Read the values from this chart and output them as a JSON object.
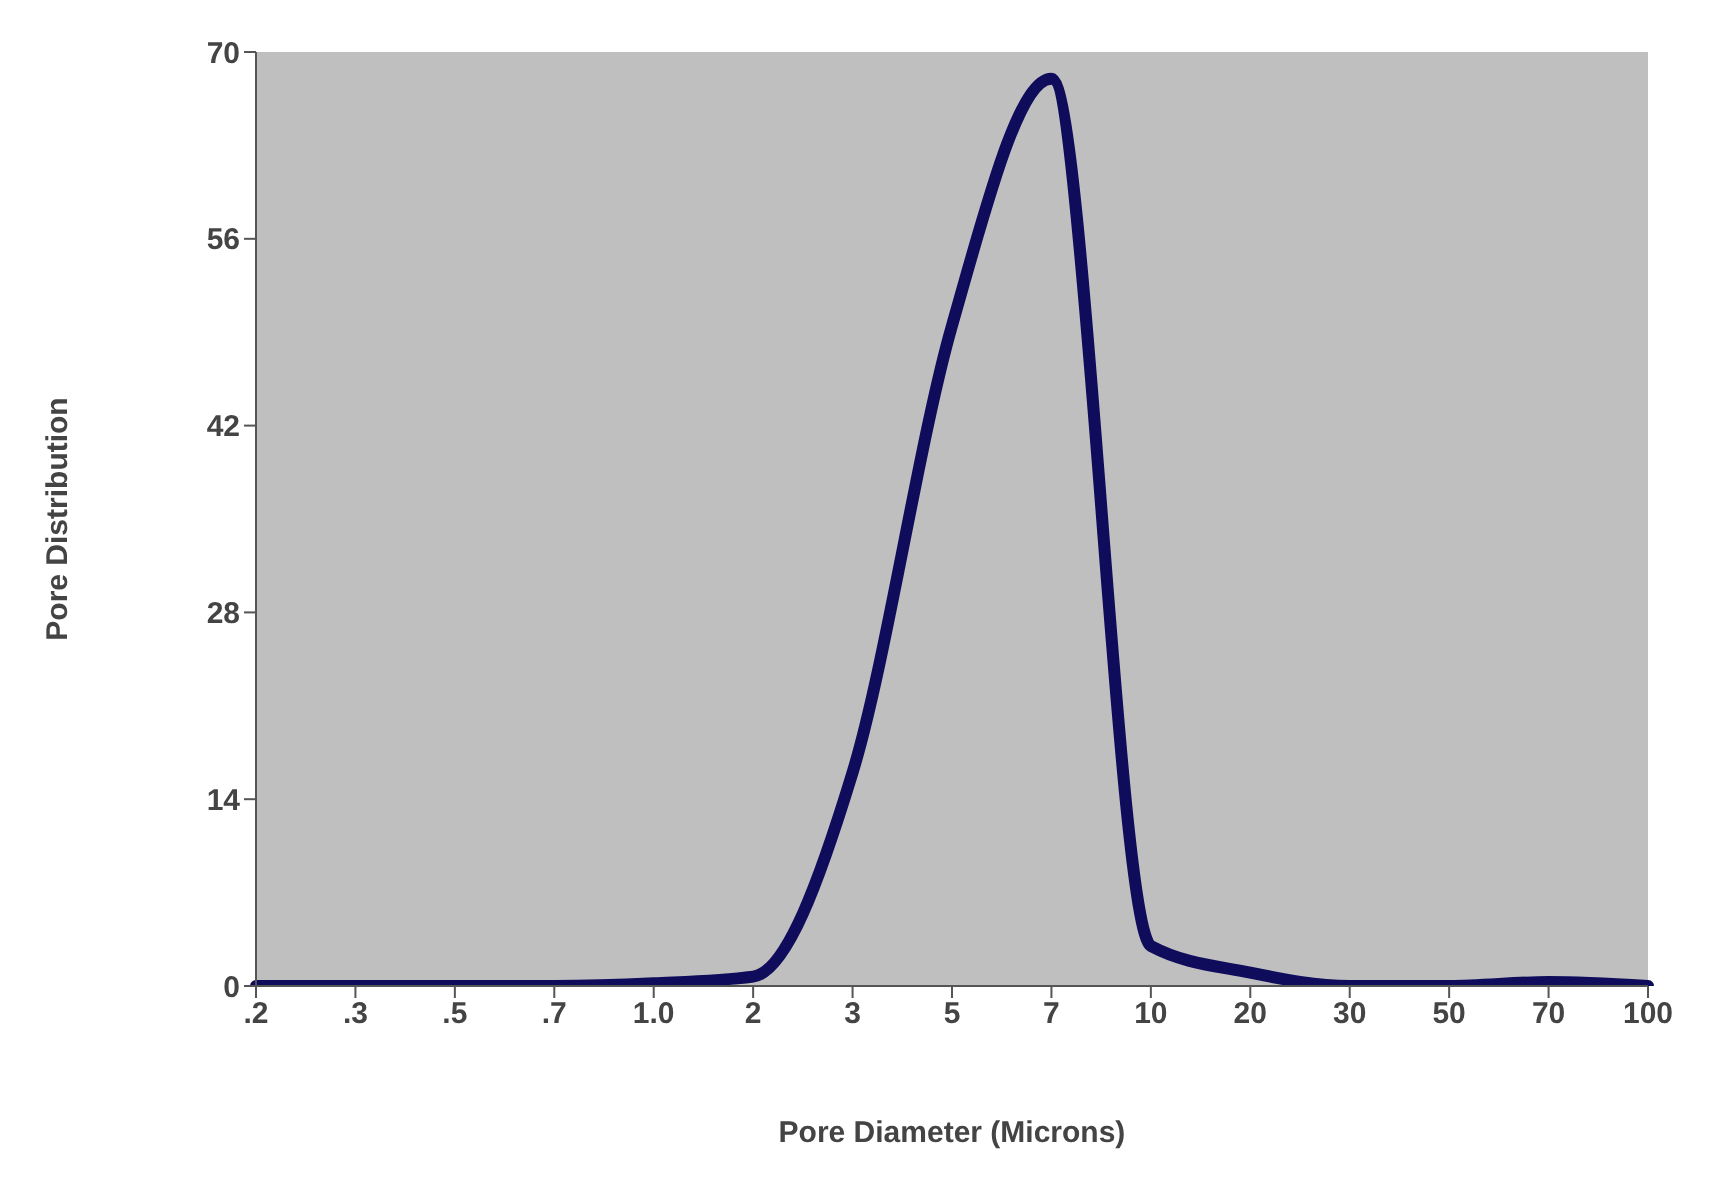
{
  "chart_data": {
    "type": "line",
    "xlabel": "Pore Diameter (Microns)",
    "ylabel": "Pore Distribution",
    "categories": [
      ".2",
      ".3",
      ".5",
      ".7",
      "1.0",
      "2",
      "3",
      "5",
      "7",
      "10",
      "20",
      "30",
      "50",
      "70",
      "100"
    ],
    "series": [
      {
        "color": "#0f0c5c",
        "values": [
          0,
          0,
          0,
          0,
          0.2,
          0.7,
          16,
          49.5,
          68,
          3,
          1,
          0,
          0,
          0.3,
          0
        ]
      }
    ],
    "ylim": [
      0,
      70
    ],
    "yticks": [
      0,
      14,
      28,
      42,
      56,
      70
    ],
    "marker": "none",
    "line_style": "solid"
  }
}
